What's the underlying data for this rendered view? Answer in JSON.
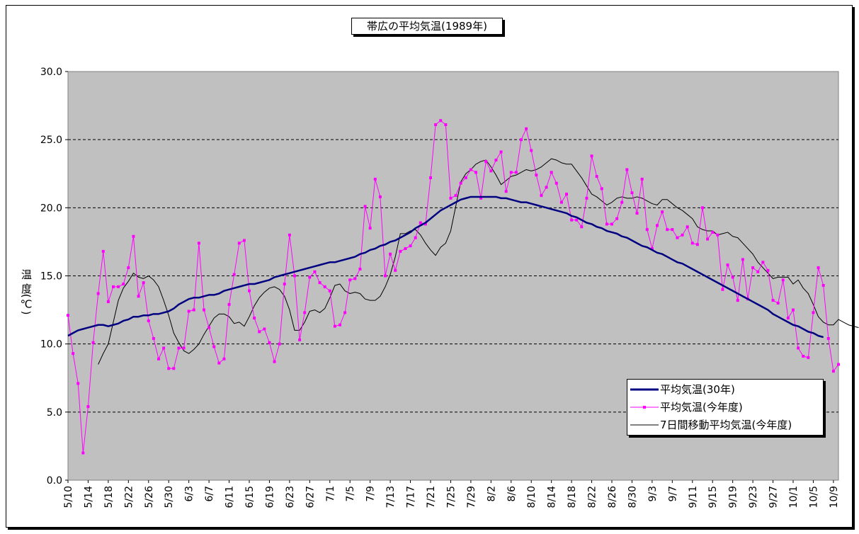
{
  "chart_data": {
    "type": "line",
    "title": "帯広の平均気温(1989年)",
    "ylabel": "温 度(℃)",
    "xlabel": "",
    "ylim": [
      0,
      30
    ],
    "yticks": [
      "0.0",
      "5.0",
      "10.0",
      "15.0",
      "20.0",
      "25.0",
      "30.0"
    ],
    "grid": "horizontal dashed",
    "legend_position": "bottom-right",
    "x_tick_labels": [
      "5/10",
      "5/14",
      "5/18",
      "5/22",
      "5/26",
      "5/30",
      "6/3",
      "6/7",
      "6/11",
      "6/15",
      "6/19",
      "6/23",
      "6/27",
      "7/1",
      "7/5",
      "7/9",
      "7/13",
      "7/17",
      "7/21",
      "7/25",
      "7/29",
      "8/2",
      "8/6",
      "8/10",
      "8/14",
      "8/18",
      "8/22",
      "8/26",
      "8/30",
      "9/3",
      "9/7",
      "9/11",
      "9/15",
      "9/19",
      "9/23",
      "9/27",
      "10/1",
      "10/5",
      "10/9"
    ],
    "x_start": "5/10",
    "x_end": "10/10",
    "series": [
      {
        "name": "平均気温(30年)",
        "color": "#000080",
        "values": [
          10.6,
          10.8,
          11.0,
          11.1,
          11.2,
          11.3,
          11.4,
          11.4,
          11.3,
          11.4,
          11.5,
          11.7,
          11.8,
          12.0,
          12.0,
          12.1,
          12.1,
          12.2,
          12.2,
          12.3,
          12.4,
          12.6,
          12.9,
          13.1,
          13.3,
          13.4,
          13.4,
          13.5,
          13.6,
          13.6,
          13.7,
          13.9,
          14.0,
          14.1,
          14.2,
          14.3,
          14.4,
          14.4,
          14.5,
          14.6,
          14.7,
          14.9,
          15.0,
          15.1,
          15.2,
          15.3,
          15.4,
          15.5,
          15.6,
          15.7,
          15.8,
          15.9,
          16.0,
          16.0,
          16.1,
          16.2,
          16.3,
          16.4,
          16.6,
          16.7,
          16.9,
          17.0,
          17.2,
          17.3,
          17.5,
          17.6,
          17.8,
          18.0,
          18.2,
          18.5,
          18.7,
          18.9,
          19.2,
          19.5,
          19.8,
          20.0,
          20.2,
          20.4,
          20.6,
          20.7,
          20.8,
          20.8,
          20.8,
          20.8,
          20.8,
          20.8,
          20.7,
          20.7,
          20.6,
          20.5,
          20.4,
          20.4,
          20.3,
          20.2,
          20.1,
          20.0,
          19.9,
          19.8,
          19.7,
          19.6,
          19.4,
          19.3,
          19.1,
          18.9,
          18.8,
          18.6,
          18.5,
          18.3,
          18.2,
          18.1,
          17.9,
          17.8,
          17.6,
          17.4,
          17.2,
          17.1,
          16.9,
          16.7,
          16.6,
          16.4,
          16.2,
          16.0,
          15.9,
          15.7,
          15.5,
          15.3,
          15.1,
          14.9,
          14.7,
          14.5,
          14.3,
          14.1,
          13.9,
          13.7,
          13.5,
          13.3,
          13.1,
          12.9,
          12.7,
          12.5,
          12.2,
          12.0,
          11.8,
          11.6,
          11.4,
          11.3,
          11.1,
          10.9,
          10.8,
          10.6,
          10.5
        ]
      },
      {
        "name": "平均気温(今年度)",
        "color": "#ff00ff",
        "values": [
          12.1,
          9.3,
          7.1,
          2.0,
          5.4,
          10.1,
          13.7,
          16.8,
          13.1,
          14.2,
          14.2,
          14.4,
          15.6,
          17.9,
          13.5,
          14.5,
          11.7,
          10.4,
          8.9,
          9.7,
          8.2,
          8.2,
          9.7,
          9.7,
          12.4,
          12.5,
          17.4,
          12.5,
          11.2,
          9.8,
          8.6,
          8.9,
          12.9,
          15.1,
          17.4,
          17.6,
          13.9,
          11.9,
          10.9,
          11.1,
          10.1,
          8.7,
          10.0,
          14.4,
          18.0,
          15.0,
          10.3,
          12.3,
          14.9,
          15.3,
          14.5,
          14.2,
          13.9,
          11.3,
          11.4,
          12.3,
          14.7,
          14.8,
          15.5,
          20.1,
          18.5,
          22.1,
          20.8,
          15.0,
          16.6,
          15.4,
          16.8,
          17.0,
          17.2,
          17.8,
          18.9,
          18.8,
          22.2,
          26.1,
          26.4,
          26.1,
          20.7,
          20.9,
          21.8,
          22.2,
          22.8,
          22.6,
          20.7,
          23.4,
          22.7,
          23.5,
          24.1,
          21.2,
          22.6,
          22.6,
          25.0,
          25.8,
          24.2,
          22.4,
          20.9,
          21.5,
          22.6,
          21.8,
          20.4,
          21.0,
          19.1,
          19.1,
          18.6,
          20.7,
          23.8,
          22.3,
          21.4,
          18.8,
          18.8,
          19.2,
          20.4,
          22.8,
          21.1,
          19.6,
          22.1,
          18.4,
          17.0,
          18.7,
          19.7,
          18.4,
          18.4,
          17.8,
          18.0,
          18.6,
          17.4,
          17.3,
          20.0,
          17.7,
          18.2,
          18.0,
          14.0,
          15.8,
          14.9,
          13.2,
          16.2,
          13.3,
          15.6,
          15.3,
          16.0,
          15.4,
          13.2,
          13.0,
          14.7,
          11.9,
          12.5,
          9.7,
          9.1,
          9.0,
          12.3,
          15.6,
          14.3,
          10.4,
          8.0,
          8.5
        ]
      },
      {
        "name": "7日間移動平均気温(今年度)",
        "color": "#000000",
        "values": [
          null,
          null,
          null,
          null,
          null,
          null,
          8.5,
          9.3,
          10.0,
          11.6,
          13.2,
          14.1,
          14.6,
          15.2,
          14.9,
          14.8,
          15.0,
          14.7,
          14.2,
          13.2,
          12.1,
          10.8,
          10.1,
          9.5,
          9.3,
          9.6,
          10.0,
          10.7,
          11.3,
          11.9,
          12.2,
          12.2,
          12.0,
          11.5,
          11.6,
          11.3,
          12.0,
          12.8,
          13.4,
          13.8,
          14.1,
          14.2,
          14.0,
          13.5,
          12.5,
          11.0,
          11.0,
          11.6,
          12.4,
          12.5,
          12.3,
          12.6,
          13.4,
          14.3,
          14.4,
          13.9,
          13.7,
          13.8,
          13.7,
          13.3,
          13.2,
          13.2,
          13.5,
          14.2,
          15.1,
          16.4,
          18.1,
          18.1,
          18.3,
          18.4,
          18.0,
          17.4,
          16.9,
          16.5,
          17.1,
          17.4,
          18.3,
          20.1,
          21.9,
          22.5,
          22.8,
          23.2,
          23.4,
          23.5,
          23.0,
          22.4,
          21.7,
          22.0,
          22.3,
          22.4,
          22.6,
          22.8,
          22.7,
          22.8,
          23.0,
          23.3,
          23.6,
          23.5,
          23.3,
          23.2,
          23.2,
          22.7,
          22.2,
          21.6,
          21.0,
          20.8,
          20.5,
          20.2,
          20.4,
          20.7,
          20.8,
          20.7,
          20.7,
          20.8,
          20.7,
          20.5,
          20.3,
          20.2,
          20.6,
          20.6,
          20.3,
          20.0,
          19.8,
          19.5,
          19.2,
          18.6,
          18.4,
          18.3,
          18.3,
          18.0,
          18.1,
          18.2,
          17.9,
          17.8,
          17.4,
          17.0,
          16.6,
          16.0,
          15.6,
          15.2,
          14.8,
          14.9,
          14.9,
          14.9,
          14.4,
          14.7,
          14.1,
          13.7,
          12.9,
          12.0,
          11.6,
          11.4,
          11.4,
          11.8,
          11.6,
          11.4,
          11.3,
          11.2
        ]
      }
    ]
  }
}
